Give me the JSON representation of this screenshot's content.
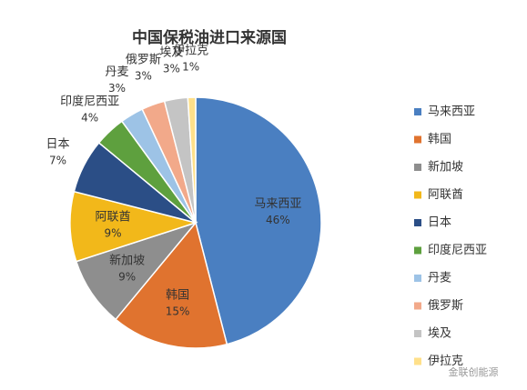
{
  "chart_data": {
    "type": "pie",
    "title": "中国保税油进口来源国",
    "categories": [
      "马来西亚",
      "韩国",
      "新加坡",
      "阿联酋",
      "日本",
      "印度尼西亚",
      "丹麦",
      "俄罗斯",
      "埃及",
      "伊拉克"
    ],
    "values": [
      46,
      15,
      9,
      9,
      7,
      4,
      3,
      3,
      3,
      1
    ],
    "value_labels": [
      "46%",
      "15%",
      "9%",
      "9%",
      "7%",
      "4%",
      "3%",
      "3%",
      "3%",
      "1%"
    ],
    "colors": [
      "#4a7fc1",
      "#e0732f",
      "#8e8e8e",
      "#f2b81a",
      "#2b4e86",
      "#5ea03e",
      "#9dc3e6",
      "#f2a98a",
      "#c4c4c4",
      "#ffe08a"
    ],
    "legend": "right",
    "watermark": "金联创能源"
  }
}
